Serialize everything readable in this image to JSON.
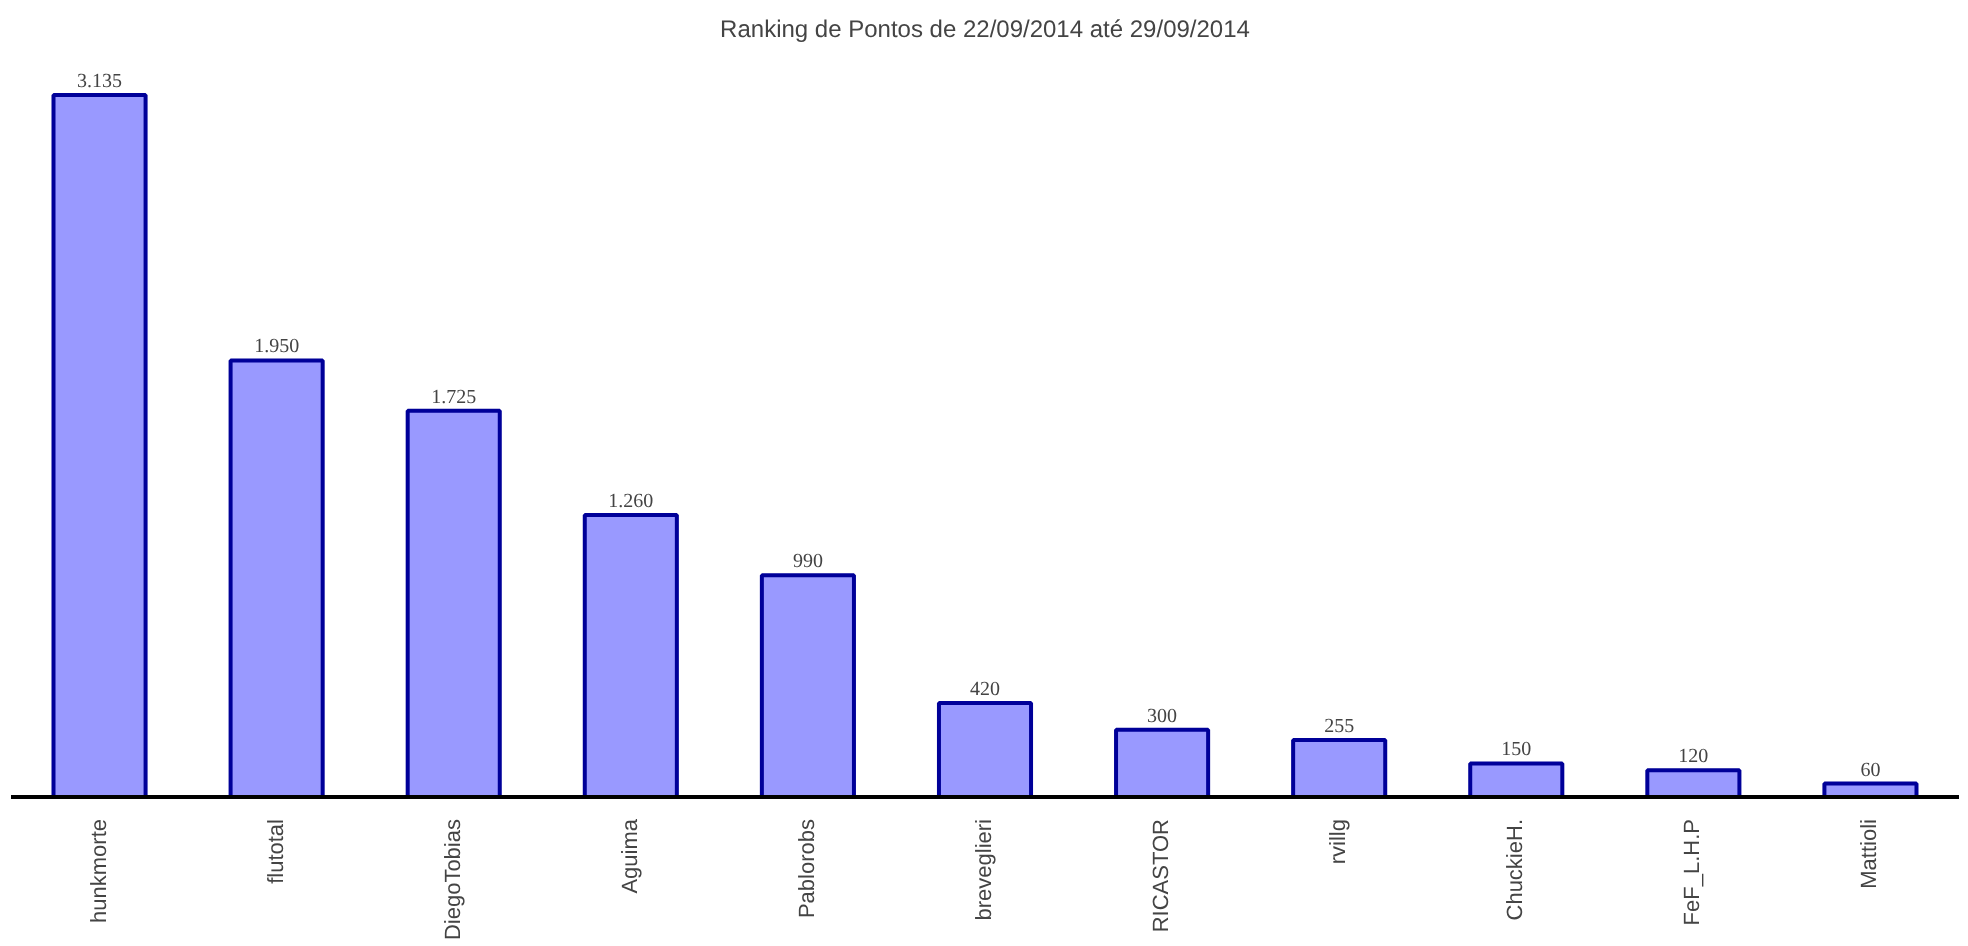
{
  "chart_data": {
    "type": "bar",
    "title": "Ranking de Pontos de 22/09/2014 até 29/09/2014",
    "categories": [
      "hunkmorte",
      "flutotal",
      "DiegoTobias",
      "Aguima",
      "Pablorobs",
      "breveglieri",
      "RICASTOR",
      "rvillg",
      "ChuckieH.",
      "FeF_L.H.P",
      "Mattioli"
    ],
    "values": [
      3135,
      1950,
      1725,
      1260,
      990,
      420,
      300,
      255,
      150,
      120,
      60
    ],
    "value_labels": [
      "3.135",
      "1.950",
      "1.725",
      "1.260",
      "990",
      "420",
      "300",
      "255",
      "150",
      "120",
      "60"
    ],
    "color": "#9999ff",
    "grid": false
  }
}
